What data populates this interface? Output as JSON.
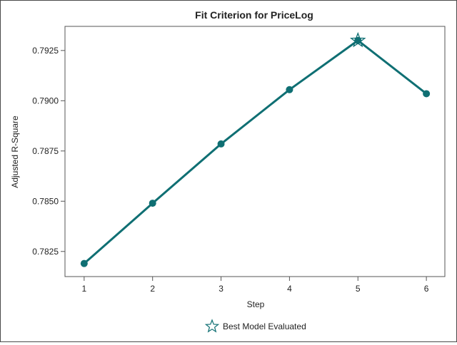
{
  "chart_data": {
    "type": "line",
    "title": "Fit Criterion for PriceLog",
    "xlabel": "Step",
    "ylabel": "Adjusted R-Square",
    "x": [
      1,
      2,
      3,
      4,
      5,
      6
    ],
    "series": [
      {
        "values": [
          0.7819,
          0.7849,
          0.78785,
          0.79055,
          0.793,
          0.79035
        ]
      }
    ],
    "best_index": 4,
    "xlim": [
      0.72,
      6.27
    ],
    "ylim": [
      0.78125,
      0.7937
    ],
    "x_ticks": [
      "1",
      "2",
      "3",
      "4",
      "5",
      "6"
    ],
    "y_ticks": [
      "0.7825",
      "0.7850",
      "0.7875",
      "0.7900",
      "0.7925"
    ],
    "y_tick_values": [
      0.7825,
      0.785,
      0.7875,
      0.79,
      0.7925
    ],
    "grid": false,
    "legend": {
      "position": "bottom-center",
      "label": "Best Model Evaluated",
      "marker": "star-icon"
    },
    "colors": {
      "line": "#0f6f73",
      "marker": "#0f6f73",
      "axis": "#555555"
    }
  }
}
